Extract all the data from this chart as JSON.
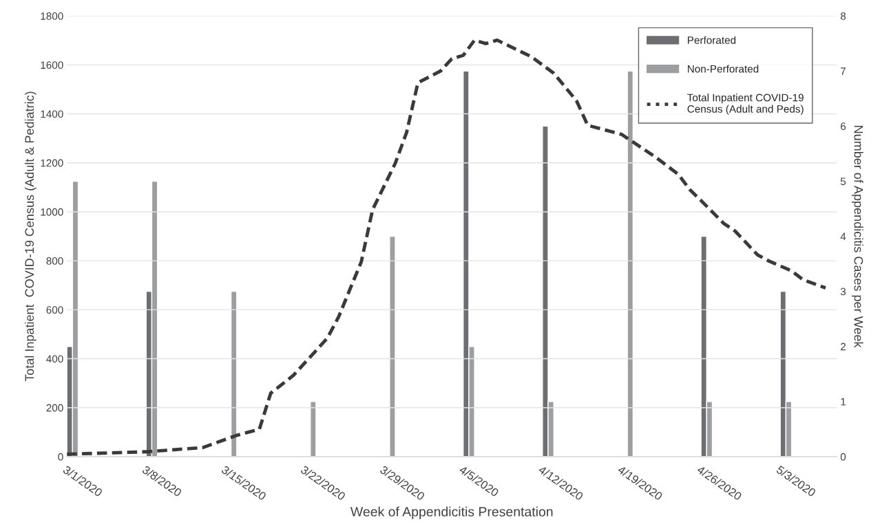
{
  "chart_data": {
    "type": "bar",
    "xlabel": "Week of Appendicitis Presentation",
    "ylabel": "Total Inpatient  COVID-19 Census (Adult & Pediatric)",
    "y2label": "Number of Appendicitis Cases per Week",
    "x": [
      "2020-03-01",
      "2020-03-08",
      "2020-03-15",
      "2020-03-22",
      "2020-03-29",
      "2020-04-05",
      "2020-04-12",
      "2020-04-19",
      "2020-04-26",
      "2020-05-03"
    ],
    "series": [
      {
        "name": "Perforated",
        "axis": "y2",
        "color": "#6d6e71",
        "values": [
          2,
          3,
          null,
          null,
          null,
          7,
          6,
          null,
          4,
          3
        ]
      },
      {
        "name": "Non-Perforated",
        "axis": "y2",
        "color": "#9d9ea1",
        "values": [
          5,
          5,
          3,
          1,
          4,
          2,
          1,
          7,
          1,
          1
        ]
      },
      {
        "name": "Total Inpatient COVID-19\nCensus (Adult and Peds)",
        "type": "line",
        "axis": "y",
        "color": "#3a3a3a",
        "line_style": "dashed",
        "x": [
          "2020-03-01",
          "2020-03-08",
          "2020-03-13",
          "2020-03-16",
          "2020-03-18",
          "2020-03-19",
          "2020-03-21",
          "2020-03-23",
          "2020-03-24",
          "2020-03-25",
          "2020-03-27",
          "2020-03-28",
          "2020-03-30",
          "2020-03-31",
          "2020-04-01",
          "2020-04-03",
          "2020-04-04",
          "2020-04-05",
          "2020-04-06",
          "2020-04-07",
          "2020-04-08",
          "2020-04-11",
          "2020-04-13",
          "2020-04-15",
          "2020-04-16",
          "2020-04-17",
          "2020-04-19",
          "2020-04-22",
          "2020-04-24",
          "2020-04-25",
          "2020-04-26",
          "2020-04-28",
          "2020-04-29",
          "2020-05-01",
          "2020-05-02",
          "2020-05-04",
          "2020-05-05",
          "2020-05-07"
        ],
        "values": [
          10,
          20,
          37,
          87,
          112,
          259,
          332,
          433,
          484,
          571,
          796,
          1009,
          1198,
          1324,
          1527,
          1575,
          1625,
          1639,
          1701,
          1687,
          1701,
          1634,
          1566,
          1454,
          1353,
          1341,
          1316,
          1223,
          1153,
          1091,
          1046,
          953,
          922,
          824,
          799,
          759,
          723,
          689
        ]
      }
    ],
    "xlim": [
      "2020-03-01",
      "2020-05-08"
    ],
    "xticks": [
      {
        "value": "2020-03-01",
        "label": "3/1/2020"
      },
      {
        "value": "2020-03-08",
        "label": "3/8/2020"
      },
      {
        "value": "2020-03-15",
        "label": "3/15/2020"
      },
      {
        "value": "2020-03-22",
        "label": "3/22/2020"
      },
      {
        "value": "2020-03-29",
        "label": "3/29/2020"
      },
      {
        "value": "2020-04-05",
        "label": "4/5/2020"
      },
      {
        "value": "2020-04-12",
        "label": "4/12/2020"
      },
      {
        "value": "2020-04-19",
        "label": "4/19/2020"
      },
      {
        "value": "2020-04-26",
        "label": "4/26/2020"
      },
      {
        "value": "2020-05-03",
        "label": "5/3/2020"
      }
    ],
    "ylim": [
      0,
      1800
    ],
    "yticks": [
      0,
      200,
      400,
      600,
      800,
      1000,
      1200,
      1400,
      1600,
      1800
    ],
    "y2lim": [
      0,
      8
    ],
    "y2ticks": [
      0,
      1,
      2,
      3,
      4,
      5,
      6,
      7,
      8
    ],
    "grid": "y",
    "legend": "top right"
  }
}
